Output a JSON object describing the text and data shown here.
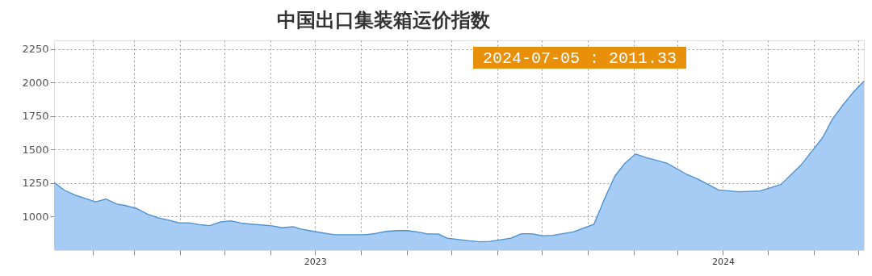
{
  "chart_data": {
    "type": "area",
    "title": "中国出口集装箱运价指数",
    "annotations": [
      "2024-07-05 : 2011.33"
    ],
    "x": [
      "2023-01-06",
      "2023-01-13",
      "2023-01-20",
      "2023-02-03",
      "2023-02-10",
      "2023-02-17",
      "2023-02-24",
      "2023-03-03",
      "2023-03-10",
      "2023-03-17",
      "2023-03-24",
      "2023-03-31",
      "2023-04-07",
      "2023-04-14",
      "2023-04-21",
      "2023-04-28",
      "2023-05-05",
      "2023-05-12",
      "2023-05-19",
      "2023-06-02",
      "2023-06-09",
      "2023-06-16",
      "2023-06-21",
      "2023-06-30",
      "2023-07-14",
      "2023-08-04",
      "2023-08-11",
      "2023-08-18",
      "2023-08-25",
      "2023-09-01",
      "2023-09-08",
      "2023-09-15",
      "2023-09-22",
      "2023-09-28",
      "2023-10-13",
      "2023-10-20",
      "2023-10-27",
      "2023-11-10",
      "2023-11-17",
      "2023-11-24",
      "2023-12-01",
      "2023-12-08",
      "2023-12-22",
      "2024-01-05",
      "2024-01-12",
      "2024-01-19",
      "2024-01-26",
      "2024-02-02",
      "2024-02-09",
      "2024-02-23",
      "2024-03-08",
      "2024-03-15",
      "2024-03-29",
      "2024-04-12",
      "2024-04-26",
      "2024-05-10",
      "2024-05-24",
      "2024-06-07",
      "2024-06-14",
      "2024-06-21",
      "2024-06-28",
      "2024-07-05"
    ],
    "series": [
      {
        "color": "#a6cbf5",
        "values": [
          1255,
          1197,
          1162,
          1110,
          1132,
          1095,
          1081,
          1060,
          1019,
          992,
          975,
          954,
          954,
          940,
          933,
          960,
          969,
          952,
          944,
          931,
          917,
          925,
          909,
          890,
          865,
          865,
          875,
          890,
          896,
          896,
          886,
          871,
          871,
          840,
          820,
          813,
          816,
          840,
          873,
          873,
          857,
          860,
          886,
          944,
          1130,
          1301,
          1400,
          1467,
          1441,
          1400,
          1313,
          1280,
          1199,
          1186,
          1192,
          1240,
          1390,
          1587,
          1732,
          1835,
          1930,
          2011.33
        ]
      }
    ],
    "xlim": [
      "2023-01-06",
      "2024-07-05"
    ],
    "xticks": [
      {
        "value": "2023-02-01",
        "label": null
      },
      {
        "value": "2023-03-01",
        "label": null
      },
      {
        "value": "2023-04-01",
        "label": null
      },
      {
        "value": "2023-05-01",
        "label": null
      },
      {
        "value": "2023-06-01",
        "label": null
      },
      {
        "value": "2023-07-01",
        "label": "2023"
      },
      {
        "value": "2023-08-01",
        "label": null
      },
      {
        "value": "2023-09-01",
        "label": null
      },
      {
        "value": "2023-10-01",
        "label": null
      },
      {
        "value": "2023-11-01",
        "label": null
      },
      {
        "value": "2023-12-01",
        "label": null
      },
      {
        "value": "2024-01-01",
        "label": null
      },
      {
        "value": "2024-02-01",
        "label": null
      },
      {
        "value": "2024-03-01",
        "label": null
      },
      {
        "value": "2024-04-01",
        "label": "2024"
      },
      {
        "value": "2024-05-01",
        "label": null
      },
      {
        "value": "2024-06-01",
        "label": null
      },
      {
        "value": "2024-07-01",
        "label": null
      }
    ],
    "ylim": [
      750,
      2315
    ],
    "yticks": [
      1000,
      1250,
      1500,
      1750,
      2000,
      2250
    ],
    "grid": true
  }
}
